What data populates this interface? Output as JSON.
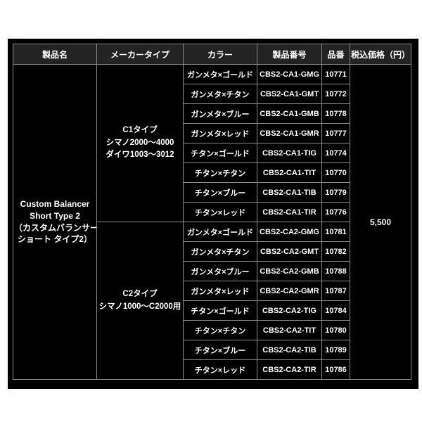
{
  "table": {
    "columns": [
      {
        "key": "product",
        "label": "製品名"
      },
      {
        "key": "type",
        "label": "メーカータイプ"
      },
      {
        "key": "color",
        "label": "カラー"
      },
      {
        "key": "code",
        "label": "製品番号"
      },
      {
        "key": "item",
        "label": "品番"
      },
      {
        "key": "price",
        "label": "税込価格（円）"
      }
    ],
    "product_name_lines": [
      "Custom Balancer",
      "Short Type 2",
      "（カスタムバランサー",
      "ショート タイプ2）"
    ],
    "price": "5,500",
    "groups": [
      {
        "type_lines": [
          "C1タイプ",
          "シマノ2000〜4000",
          "ダイワ1003〜3012"
        ],
        "rows": [
          {
            "color": "ガンメタ×ゴールド",
            "code": "CBS2-CA1-GMG",
            "item": "10771"
          },
          {
            "color": "ガンメタ×チタン",
            "code": "CBS2-CA1-GMT",
            "item": "10772"
          },
          {
            "color": "ガンメタ×ブルー",
            "code": "CBS2-CA1-GMB",
            "item": "10778"
          },
          {
            "color": "ガンメタ×レッド",
            "code": "CBS2-CA1-GMR",
            "item": "10777"
          },
          {
            "color": "チタン×ゴールド",
            "code": "CBS2-CA1-TIG",
            "item": "10774"
          },
          {
            "color": "チタン×チタン",
            "code": "CBS2-CA1-TIT",
            "item": "10770"
          },
          {
            "color": "チタン×ブルー",
            "code": "CBS2-CA1-TIB",
            "item": "10779"
          },
          {
            "color": "チタン×レッド",
            "code": "CBS2-CA1-TIR",
            "item": "10776"
          }
        ]
      },
      {
        "type_lines": [
          "C2タイプ",
          "シマノ1000〜C2000用"
        ],
        "rows": [
          {
            "color": "ガンメタ×ゴールド",
            "code": "CBS2-CA2-GMG",
            "item": "10781"
          },
          {
            "color": "ガンメタ×チタン",
            "code": "CBS2-CA2-GMT",
            "item": "10782"
          },
          {
            "color": "ガンメタ×ブルー",
            "code": "CBS2-CA2-GMB",
            "item": "10788"
          },
          {
            "color": "ガンメタ×レッド",
            "code": "CBS2-CA2-GMR",
            "item": "10787"
          },
          {
            "color": "チタン×ゴールド",
            "code": "CBS2-CA2-TIG",
            "item": "10784"
          },
          {
            "color": "チタン×チタン",
            "code": "CBS2-CA2-TIT",
            "item": "10780"
          },
          {
            "color": "チタン×ブルー",
            "code": "CBS2-CA2-TIB",
            "item": "10789"
          },
          {
            "color": "チタン×レッド",
            "code": "CBS2-CA2-TIR",
            "item": "10786"
          }
        ]
      }
    ],
    "colors": {
      "page_bg": "#ffffff",
      "canvas_bg": "#000000",
      "header_bg": "#232323",
      "cell_bg": "#000000",
      "border": "#8a8a8a",
      "text": "#ffffff"
    }
  }
}
